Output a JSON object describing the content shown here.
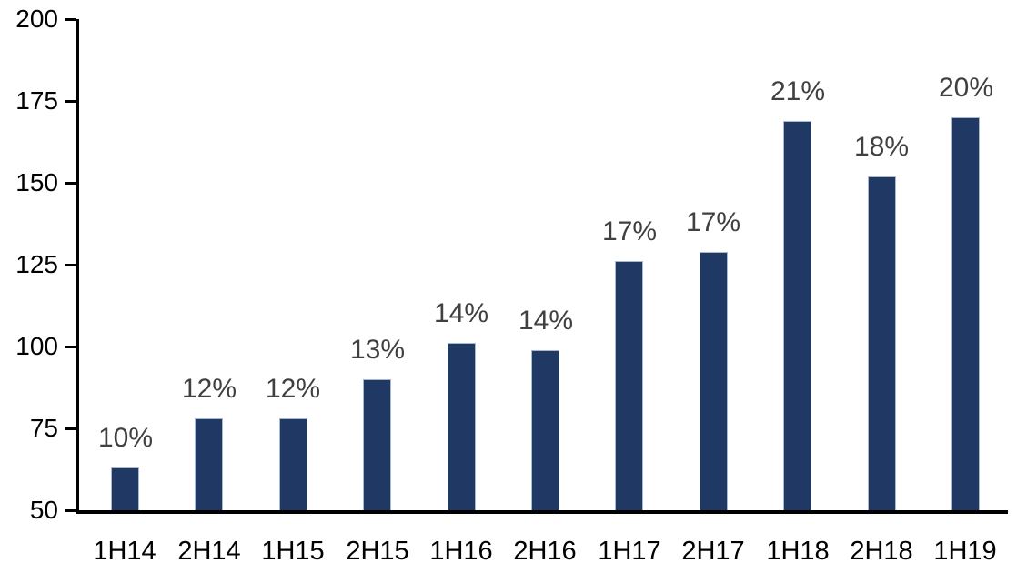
{
  "chart_data": {
    "type": "bar",
    "title": "",
    "categories": [
      "1H14",
      "2H14",
      "1H15",
      "2H15",
      "1H16",
      "2H16",
      "1H17",
      "2H17",
      "1H18",
      "2H18",
      "1H19"
    ],
    "values": [
      63,
      78,
      78,
      90,
      101,
      99,
      126,
      129,
      169,
      152,
      170
    ],
    "bar_labels": [
      "10%",
      "12%",
      "12%",
      "13%",
      "14%",
      "14%",
      "17%",
      "17%",
      "21%",
      "18%",
      "20%"
    ],
    "xlabel": "",
    "ylabel": "",
    "ylim": [
      50,
      200
    ],
    "yticks": [
      50,
      75,
      100,
      125,
      150,
      175,
      200
    ],
    "grid": false,
    "legend": false,
    "colors": {
      "bar_fill": "#1F3864",
      "bar_border": "#A9B8D1",
      "bar_label_text": "#404040",
      "axis_text": "#000000",
      "axis_line": "#000000",
      "background": "#FFFFFF"
    }
  }
}
